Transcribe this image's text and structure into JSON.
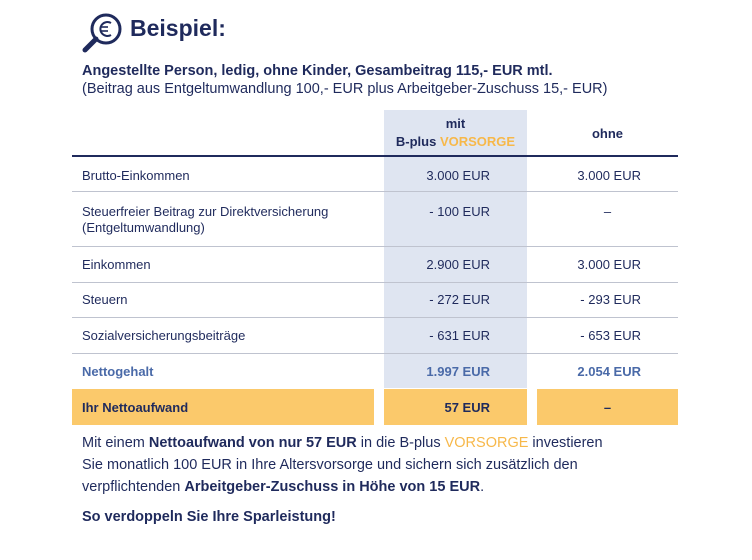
{
  "header": {
    "title": "Beispiel:",
    "subtitle": "Angestellte Person, ledig, ohne Kinder, Gesambeitrag 115,- EUR mtl.",
    "subtitle2": "(Beitrag aus Entgeltumwandlung 100,- EUR plus Arbeitgeber-Zuschuss 15,- EUR)"
  },
  "table": {
    "columns": {
      "with": {
        "line1": "mit",
        "brand": "B-plus",
        "product": "VORSORGE"
      },
      "without": "ohne"
    },
    "rows": [
      [
        "Brutto-Einkommen",
        "3.000 EUR",
        "3.000 EUR"
      ],
      [
        [
          "Steuerfreier Beitrag zur Direktversicherung",
          "(Entgeltumwandlung)"
        ],
        "- 100 EUR",
        "–"
      ],
      [
        "Einkommen",
        "2.900 EUR",
        "3.000 EUR"
      ],
      [
        "Steuern",
        "- 272 EUR",
        "- 293 EUR"
      ],
      [
        "Sozialversicherungsbeiträge",
        "- 631 EUR",
        "- 653 EUR"
      ],
      [
        "Nettogehalt",
        "1.997 EUR",
        "2.054 EUR"
      ],
      [
        "Ihr Nettoaufwand",
        "57 EUR",
        "–"
      ]
    ]
  },
  "note": {
    "line1": [
      "Mit einem ",
      "Nettoaufwand von nur 57 EUR",
      " in die B-plus ",
      "VORSORGE",
      " investieren"
    ],
    "line2": "Sie monatlich 100 EUR in Ihre Altersvorsorge und sichern sich zusätzlich den",
    "line3": [
      "verpflichtenden ",
      "Arbeitgeber-Zuschuss in Höhe von 15 EUR",
      "."
    ],
    "line4": "So verdoppeln Sie Ihre Sparleistung!"
  }
}
